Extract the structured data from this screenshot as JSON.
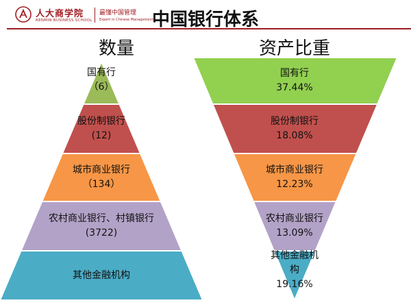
{
  "header": {
    "logo_cn": "人大商学院",
    "logo_en": "RENMIN BUSINESS SCHOOL",
    "slogan_cn": "最懂中国管理",
    "slogan_en": "Expert in Chinese Management"
  },
  "title": "中国银行体系",
  "left_title": "数量",
  "right_title": "资产比重",
  "pyramid": [
    {
      "name": "国有行",
      "value": "（6）",
      "color": "#9bbb59"
    },
    {
      "name": "股份制银行",
      "value": "(12)",
      "color": "#c0504d"
    },
    {
      "name": "城市商业银行",
      "value": "（134）",
      "color": "#f79646"
    },
    {
      "name": "农村商业银行、村镇银行",
      "value": "(3722)",
      "color": "#b3a2c7"
    },
    {
      "name": "其他金融机构",
      "value": "",
      "color": "#4bacc6"
    }
  ],
  "funnel": [
    {
      "name": "国有行",
      "value": "37.44%",
      "color": "#92d050"
    },
    {
      "name": "股份制银行",
      "value": "18.08%",
      "color": "#c0504d"
    },
    {
      "name": "城市商业银行",
      "value": "12.23%",
      "color": "#f79646"
    },
    {
      "name": "农村商业银行",
      "value": "13.09%",
      "color": "#b3a2c7"
    },
    {
      "name": "其他金融机构",
      "value": "19.16%",
      "color": "#4bacc6"
    }
  ]
}
